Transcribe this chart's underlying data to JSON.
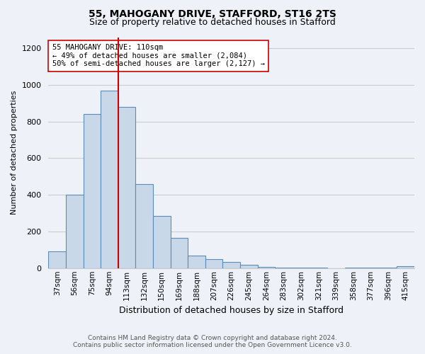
{
  "title": "55, MAHOGANY DRIVE, STAFFORD, ST16 2TS",
  "subtitle": "Size of property relative to detached houses in Stafford",
  "xlabel": "Distribution of detached houses by size in Stafford",
  "ylabel": "Number of detached properties",
  "footer1": "Contains HM Land Registry data © Crown copyright and database right 2024.",
  "footer2": "Contains public sector information licensed under the Open Government Licence v3.0.",
  "bar_labels": [
    "37sqm",
    "56sqm",
    "75sqm",
    "94sqm",
    "113sqm",
    "132sqm",
    "150sqm",
    "169sqm",
    "188sqm",
    "207sqm",
    "226sqm",
    "245sqm",
    "264sqm",
    "283sqm",
    "302sqm",
    "321sqm",
    "339sqm",
    "358sqm",
    "377sqm",
    "396sqm",
    "415sqm"
  ],
  "bar_values": [
    90,
    400,
    840,
    970,
    880,
    460,
    285,
    165,
    70,
    48,
    32,
    18,
    8,
    4,
    2,
    2,
    1,
    2,
    2,
    2,
    12
  ],
  "bar_color": "#c8d8e8",
  "bar_edge_color": "#5b8db8",
  "vline_x": 3.5,
  "vline_color": "#cc0000",
  "annotation_text": "55 MAHOGANY DRIVE: 110sqm\n← 49% of detached houses are smaller (2,084)\n50% of semi-detached houses are larger (2,127) →",
  "annotation_box_color": "#ffffff",
  "annotation_box_edge": "#cc0000",
  "ylim": [
    0,
    1260
  ],
  "yticks": [
    0,
    200,
    400,
    600,
    800,
    1000,
    1200
  ],
  "grid_color": "#cccccc",
  "background_color": "#eef2f8"
}
